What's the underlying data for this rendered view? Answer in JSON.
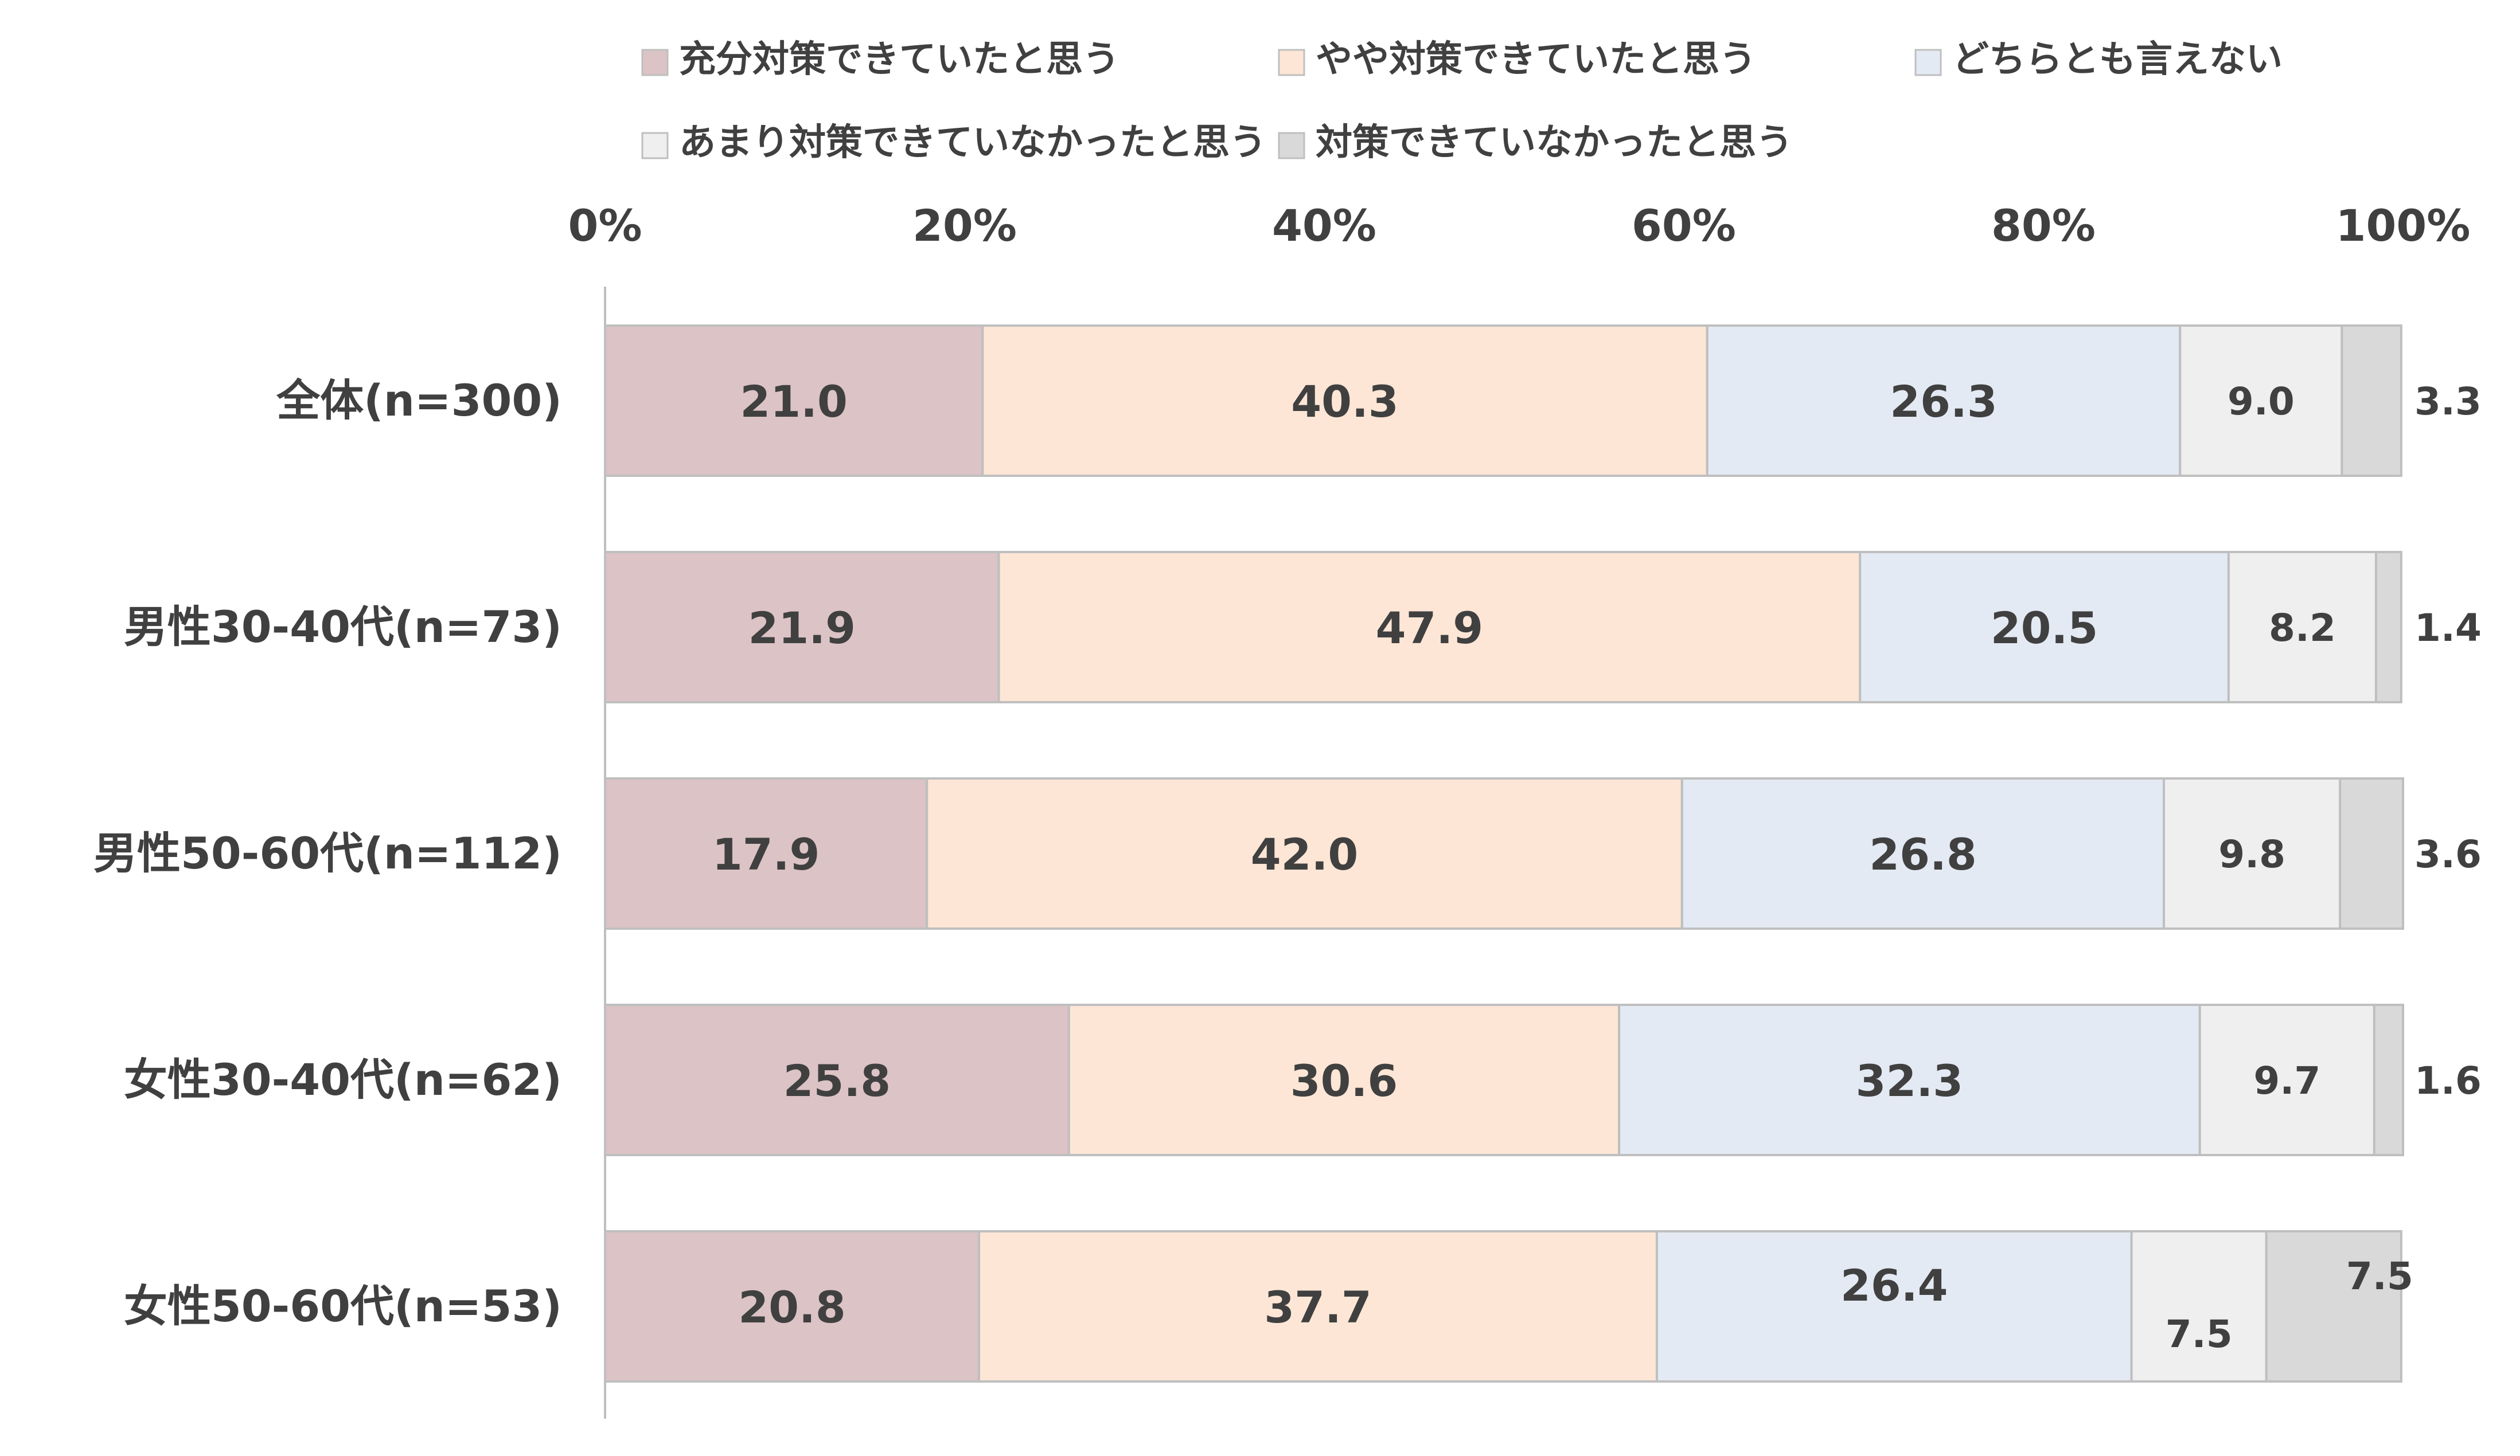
{
  "chart_data": {
    "type": "bar",
    "orientation": "horizontal",
    "stacked": true,
    "percent": true,
    "categories": [
      "全体(n=300)",
      "男性30-40代(n=73)",
      "男性50-60代(n=112)",
      "女性30-40代(n=62)",
      "女性50-60代(n=53)"
    ],
    "series": [
      {
        "name": "充分対策できていたと思う",
        "color": "#dcc3c5",
        "values": [
          21.0,
          21.9,
          17.9,
          25.8,
          20.8
        ]
      },
      {
        "name": "やや対策できていたと思う",
        "color": "#fde6d6",
        "values": [
          40.3,
          47.9,
          42.0,
          30.6,
          37.7
        ]
      },
      {
        "name": "どちらとも言えない",
        "color": "#e4eaf3",
        "values": [
          26.3,
          20.5,
          26.8,
          32.3,
          26.4
        ]
      },
      {
        "name": "あまり対策できていなかったと思う",
        "color": "#efefef",
        "values": [
          9.0,
          8.2,
          9.8,
          9.7,
          7.5
        ]
      },
      {
        "name": "対策できていなかったと思う",
        "color": "#d9d9d9",
        "values": [
          3.3,
          1.4,
          3.6,
          1.6,
          7.5
        ]
      }
    ],
    "x_ticks": [
      "0%",
      "20%",
      "40%",
      "60%",
      "80%",
      "100%"
    ],
    "xlim": [
      0,
      100
    ],
    "legend": "top",
    "grid": false,
    "border_color": "#bfbfbf",
    "text_color": "#404040"
  }
}
